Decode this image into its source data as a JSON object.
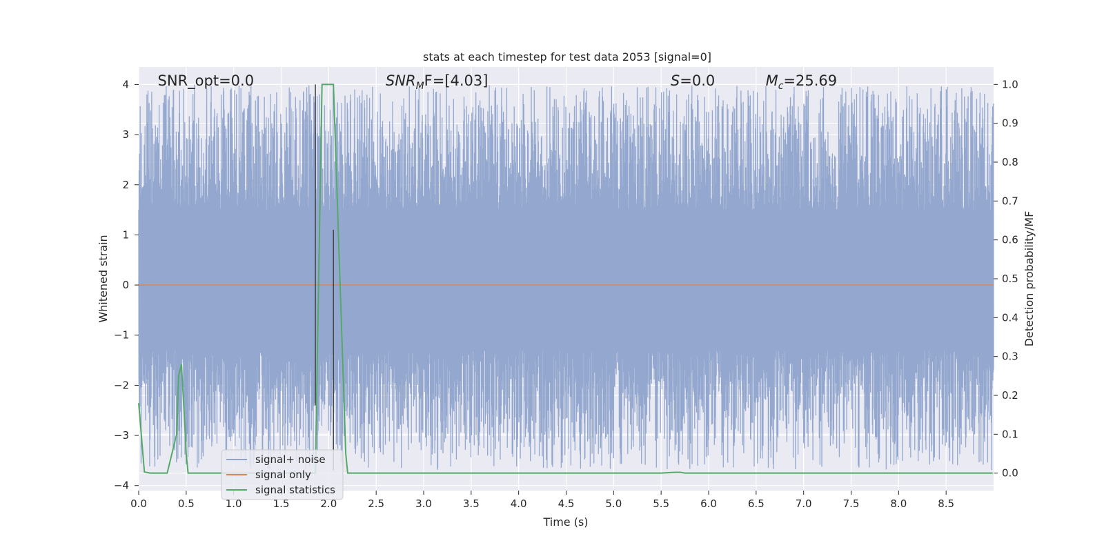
{
  "chart_data": {
    "type": "line",
    "title": "stats at each timestep for test data 2053 [signal=0]",
    "xlabel": "Time (s)",
    "ylabel": "Whitened strain",
    "y2label": "Detection probability/MF",
    "xlim": [
      0.0,
      9.0
    ],
    "ylim": [
      -4.1,
      4.35
    ],
    "y2lim": [
      -0.045,
      1.045
    ],
    "xticks": [
      "0.0",
      "0.5",
      "1.0",
      "1.5",
      "2.0",
      "2.5",
      "3.0",
      "3.5",
      "4.0",
      "4.5",
      "5.0",
      "5.5",
      "6.0",
      "6.5",
      "7.0",
      "7.5",
      "8.0",
      "8.5"
    ],
    "xtick_values": [
      0.0,
      0.5,
      1.0,
      1.5,
      2.0,
      2.5,
      3.0,
      3.5,
      4.0,
      4.5,
      5.0,
      5.5,
      6.0,
      6.5,
      7.0,
      7.5,
      8.0,
      8.5
    ],
    "yticks": [
      "4",
      "3",
      "2",
      "1",
      "0",
      "−1",
      "−2",
      "−3",
      "−4"
    ],
    "ytick_values": [
      4,
      3,
      2,
      1,
      0,
      -1,
      -2,
      -3,
      -4
    ],
    "y2ticks": [
      "1.0",
      "0.9",
      "0.8",
      "0.7",
      "0.6",
      "0.5",
      "0.4",
      "0.3",
      "0.2",
      "0.1",
      "0.0"
    ],
    "y2tick_values": [
      1.0,
      0.9,
      0.8,
      0.7,
      0.6,
      0.5,
      0.4,
      0.3,
      0.2,
      0.1,
      0.0
    ],
    "grid": true,
    "legend_position": "bottom-left",
    "series": [
      {
        "name": "signal+ noise",
        "color": "#8fa4cc",
        "axis": "left",
        "style": "dense-noise",
        "duration": 9.0,
        "samples": 4600,
        "envelope_high_range": [
          1.5,
          4.0
        ],
        "envelope_low_range": [
          -1.3,
          -3.7
        ]
      },
      {
        "name": "signal only",
        "color": "#dd8452",
        "axis": "left",
        "x": [
          0.0,
          9.0
        ],
        "y": [
          0.0,
          0.0
        ]
      },
      {
        "name": "signal statistics",
        "color": "#55a868",
        "axis": "right",
        "x": [
          0.0,
          0.06,
          0.12,
          0.3,
          0.4,
          0.42,
          0.45,
          0.48,
          0.5,
          0.52,
          1.86,
          1.93,
          2.05,
          2.18,
          2.2,
          5.5,
          5.65,
          5.7,
          5.75,
          8.99
        ],
        "y": [
          0.18,
          0.003,
          0.0,
          0.0,
          0.1,
          0.25,
          0.28,
          0.15,
          0.05,
          0.0,
          0.0,
          1.0,
          1.0,
          0.05,
          0.0,
          0.0,
          0.002,
          0.002,
          0.0,
          0.0
        ]
      }
    ],
    "vertical_markers": [
      {
        "x": 1.86,
        "y_top": 4.0,
        "y_bottom": -2.4,
        "color": "#404040"
      },
      {
        "x": 2.05,
        "y_top": 1.1,
        "y_bottom": -3.7,
        "color": "#404040"
      }
    ],
    "annotations": [
      {
        "text": "SNR_opt=0.0",
        "x": 0.2
      },
      {
        "text": "SNR_MF=[4.03]",
        "x": 2.6,
        "prefix": "SNR",
        "sub": "M",
        "suffix": "F=[4.03]"
      },
      {
        "text": "S=0.0",
        "x": 5.6,
        "prefix": "S",
        "suffix": "=0.0"
      },
      {
        "text": "M_c=25.69",
        "x": 6.6,
        "prefix": "M",
        "sub": "c",
        "suffix": "=25.69"
      }
    ]
  }
}
